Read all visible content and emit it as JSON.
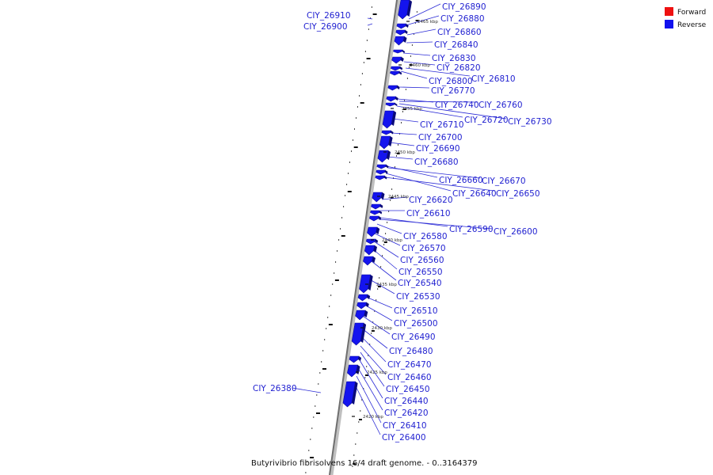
{
  "title": "Butyrivibrio fibrisolvens 16/4 draft genome. - 0..3164379",
  "legend": [
    {
      "label": "Forward",
      "color": "#ee1111"
    },
    {
      "label": "Reverse",
      "color": "#1111ee"
    }
  ],
  "kbp_marks": [
    "2420 kbp",
    "2425 kbp",
    "2430 kbp",
    "2435 kbp",
    "2440 kbp",
    "2445 kbp",
    "2450 kbp",
    "2455 kbp",
    "2460 kbp",
    "2465 kbp"
  ],
  "genes": [
    {
      "name": "CIY_26910",
      "strand": "reverse"
    },
    {
      "name": "CIY_26900",
      "strand": "reverse"
    },
    {
      "name": "CIY_26890",
      "strand": "reverse"
    },
    {
      "name": "CIY_26880",
      "strand": "reverse"
    },
    {
      "name": "CIY_26860",
      "strand": "reverse"
    },
    {
      "name": "CIY_26840",
      "strand": "reverse"
    },
    {
      "name": "CIY_26830",
      "strand": "reverse"
    },
    {
      "name": "CIY_26820",
      "strand": "reverse"
    },
    {
      "name": "CIY_26800",
      "strand": "reverse"
    },
    {
      "name": "CIY_26810",
      "strand": "reverse"
    },
    {
      "name": "CIY_26770",
      "strand": "reverse"
    },
    {
      "name": "CIY_26740",
      "strand": "reverse"
    },
    {
      "name": "CIY_26760",
      "strand": "reverse"
    },
    {
      "name": "CIY_26720",
      "strand": "reverse"
    },
    {
      "name": "CIY_26730",
      "strand": "reverse"
    },
    {
      "name": "CIY_26710",
      "strand": "reverse"
    },
    {
      "name": "CIY_26700",
      "strand": "reverse"
    },
    {
      "name": "CIY_26690",
      "strand": "reverse"
    },
    {
      "name": "CIY_26680",
      "strand": "reverse"
    },
    {
      "name": "CIY_26660",
      "strand": "reverse"
    },
    {
      "name": "CIY_26670",
      "strand": "reverse"
    },
    {
      "name": "CIY_26640",
      "strand": "reverse"
    },
    {
      "name": "CIY_26650",
      "strand": "reverse"
    },
    {
      "name": "CIY_26620",
      "strand": "reverse"
    },
    {
      "name": "CIY_26610",
      "strand": "reverse"
    },
    {
      "name": "CIY_26590",
      "strand": "reverse"
    },
    {
      "name": "CIY_26600",
      "strand": "reverse"
    },
    {
      "name": "CIY_26580",
      "strand": "reverse"
    },
    {
      "name": "CIY_26570",
      "strand": "reverse"
    },
    {
      "name": "CIY_26560",
      "strand": "reverse"
    },
    {
      "name": "CIY_26550",
      "strand": "reverse"
    },
    {
      "name": "CIY_26540",
      "strand": "reverse"
    },
    {
      "name": "CIY_26530",
      "strand": "reverse"
    },
    {
      "name": "CIY_26510",
      "strand": "reverse"
    },
    {
      "name": "CIY_26500",
      "strand": "reverse"
    },
    {
      "name": "CIY_26490",
      "strand": "reverse"
    },
    {
      "name": "CIY_26480",
      "strand": "reverse"
    },
    {
      "name": "CIY_26470",
      "strand": "reverse"
    },
    {
      "name": "CIY_26460",
      "strand": "reverse"
    },
    {
      "name": "CIY_26450",
      "strand": "reverse"
    },
    {
      "name": "CIY_26440",
      "strand": "reverse"
    },
    {
      "name": "CIY_26420",
      "strand": "reverse"
    },
    {
      "name": "CIY_26410",
      "strand": "reverse"
    },
    {
      "name": "CIY_26400",
      "strand": "reverse"
    },
    {
      "name": "CIY_26380",
      "strand": "reverse"
    }
  ]
}
